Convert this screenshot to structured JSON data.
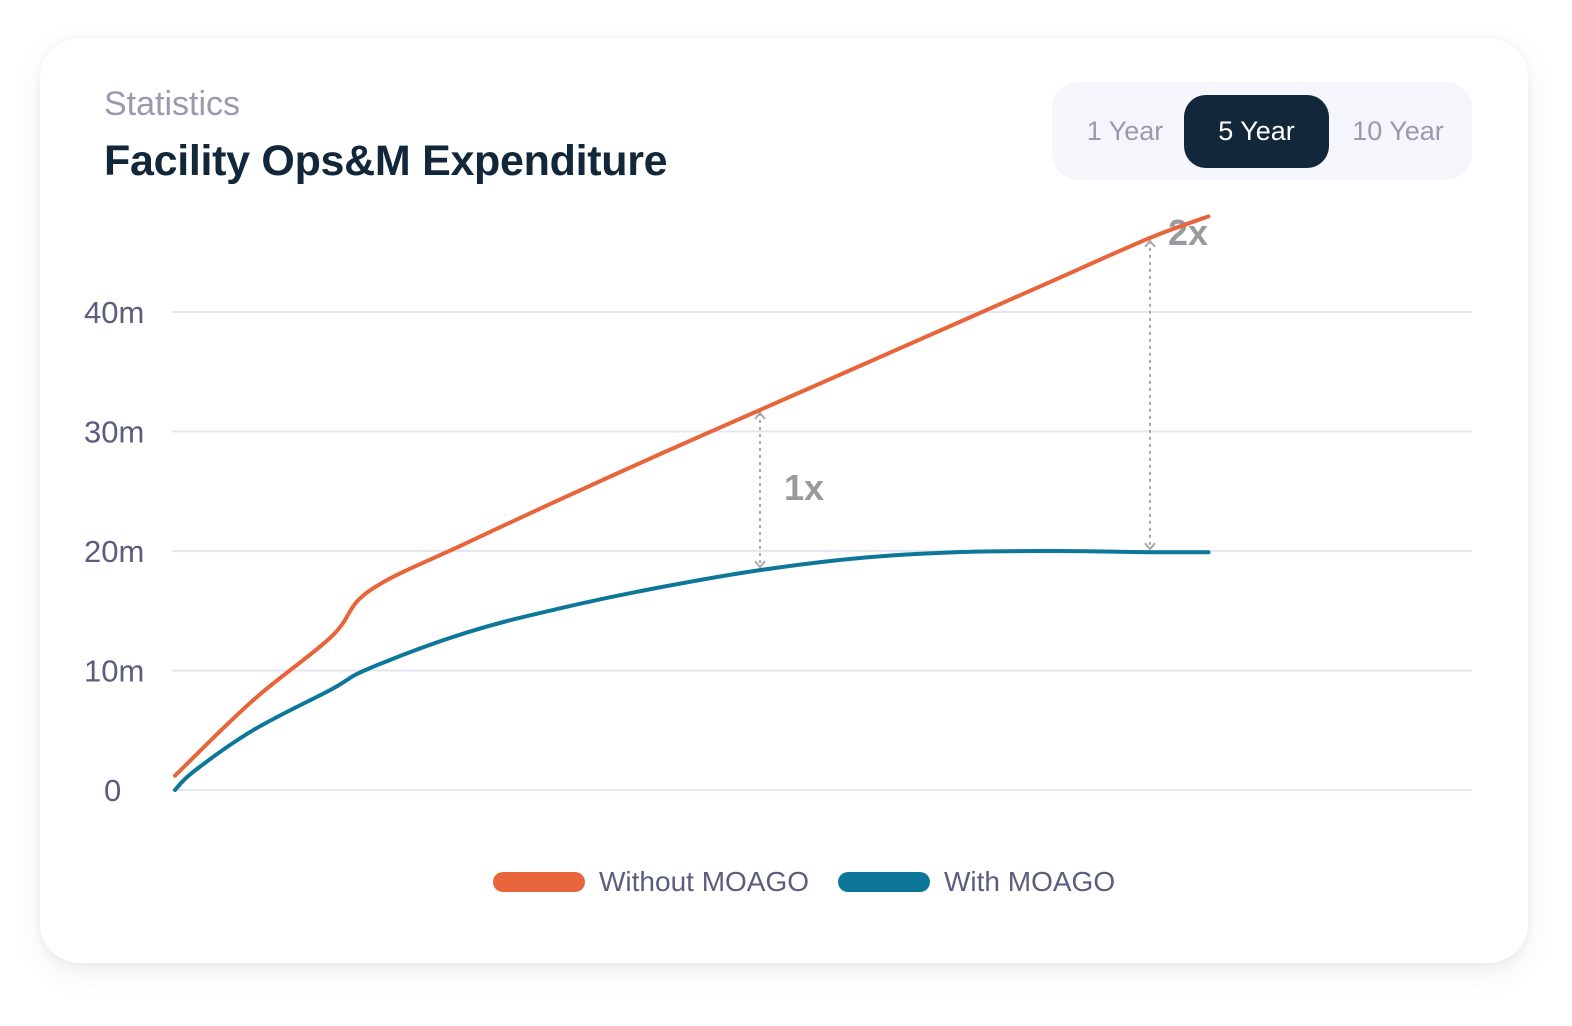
{
  "header": {
    "subtitle": "Statistics",
    "title": "Facility Ops&M Expenditure"
  },
  "tabs": [
    {
      "label": "1 Year",
      "active": false
    },
    {
      "label": "5 Year",
      "active": true
    },
    {
      "label": "10 Year",
      "active": false
    }
  ],
  "colors": {
    "without": "#e8643a",
    "with": "#0d7799",
    "grid": "#e4e5ef",
    "annotation": "#a8a8ae"
  },
  "chart_data": {
    "type": "line",
    "title": "Facility Ops&M Expenditure",
    "xlabel": "",
    "ylabel": "",
    "yticks": [
      "0",
      "10m",
      "20m",
      "30m",
      "40m"
    ],
    "ylim": [
      0,
      48
    ],
    "xlim": [
      0,
      5.8
    ],
    "grid": true,
    "legend_position": "bottom-center",
    "series": [
      {
        "name": "Without MOAGO",
        "color": "#e8643a",
        "points": [
          [
            0.0,
            1.2
          ],
          [
            0.4,
            7.5
          ],
          [
            0.8,
            12.8
          ],
          [
            1.0,
            16.7
          ],
          [
            1.5,
            20.7
          ],
          [
            2.0,
            24.5
          ],
          [
            2.5,
            28.2
          ],
          [
            3.0,
            31.8
          ],
          [
            3.5,
            35.4
          ],
          [
            4.0,
            39.0
          ],
          [
            4.5,
            42.6
          ],
          [
            5.0,
            46.2
          ],
          [
            5.3,
            48.0
          ]
        ]
      },
      {
        "name": "With MOAGO",
        "color": "#0d7799",
        "points": [
          [
            0.0,
            0.0
          ],
          [
            0.1,
            1.6
          ],
          [
            0.4,
            5.0
          ],
          [
            0.8,
            8.4
          ],
          [
            1.0,
            10.2
          ],
          [
            1.5,
            13.2
          ],
          [
            2.0,
            15.3
          ],
          [
            2.5,
            17.0
          ],
          [
            3.0,
            18.4
          ],
          [
            3.5,
            19.4
          ],
          [
            4.0,
            19.9
          ],
          [
            4.5,
            20.0
          ],
          [
            5.0,
            19.9
          ],
          [
            5.3,
            19.9
          ]
        ]
      }
    ],
    "annotations": [
      {
        "label": "1x",
        "x": 3.0,
        "y_from": 18.4,
        "y_to": 31.8
      },
      {
        "label": "2x",
        "x": 5.0,
        "y_from": 19.9,
        "y_to": 46.2
      }
    ]
  }
}
